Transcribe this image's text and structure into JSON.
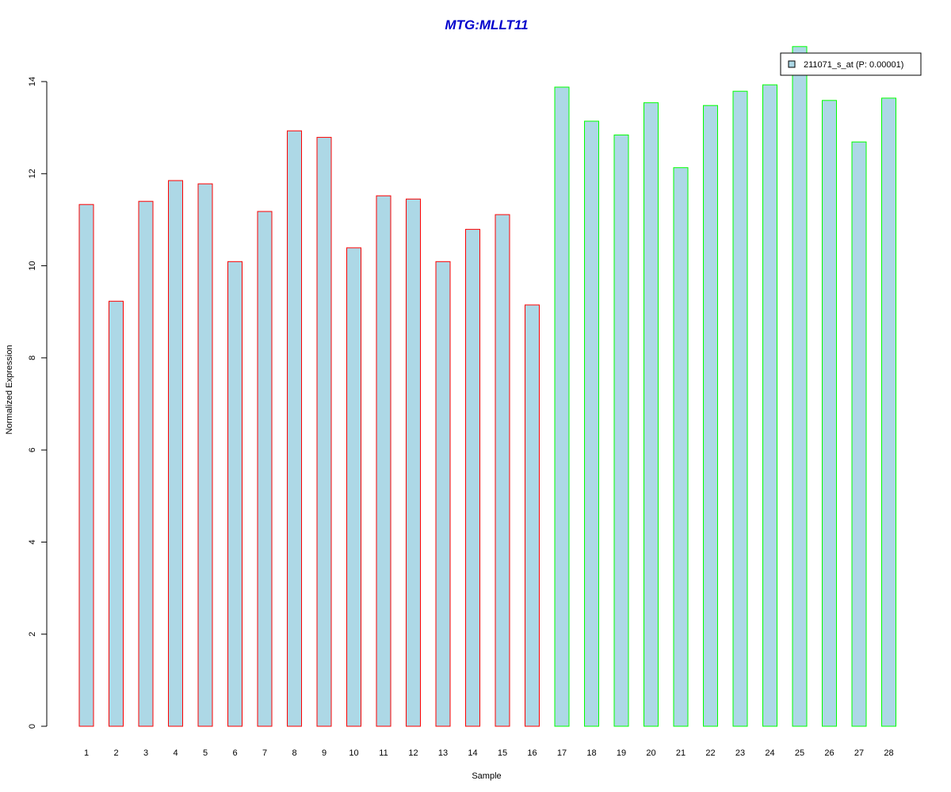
{
  "chart_data": {
    "type": "bar",
    "title": "MTG:MLLT11",
    "title_color": "#0000cc",
    "xlabel": "Sample",
    "ylabel": "Normalized Expression",
    "ylim": [
      0,
      14
    ],
    "yticks": [
      0,
      2,
      4,
      6,
      8,
      10,
      12,
      14
    ],
    "grid": false,
    "legend_position": "top-right",
    "fill_color": "#add8e6",
    "categories": [
      "1",
      "2",
      "3",
      "4",
      "5",
      "6",
      "7",
      "8",
      "9",
      "10",
      "11",
      "12",
      "13",
      "14",
      "15",
      "16",
      "17",
      "18",
      "19",
      "20",
      "21",
      "22",
      "23",
      "24",
      "25",
      "26",
      "27",
      "28"
    ],
    "series": [
      {
        "name": "211071_s_at (P: 0.00001)",
        "values": [
          11.33,
          9.23,
          11.4,
          11.85,
          11.78,
          10.09,
          11.18,
          12.93,
          12.79,
          10.39,
          11.52,
          11.45,
          10.09,
          10.79,
          11.11,
          9.15,
          13.88,
          13.14,
          12.84,
          13.54,
          12.13,
          13.48,
          13.79,
          13.93,
          14.76,
          13.59,
          12.69,
          13.64
        ],
        "border_colors": [
          "#ff0000",
          "#ff0000",
          "#ff0000",
          "#ff0000",
          "#ff0000",
          "#ff0000",
          "#ff0000",
          "#ff0000",
          "#ff0000",
          "#ff0000",
          "#ff0000",
          "#ff0000",
          "#ff0000",
          "#ff0000",
          "#ff0000",
          "#ff0000",
          "#00ff00",
          "#00ff00",
          "#00ff00",
          "#00ff00",
          "#00ff00",
          "#00ff00",
          "#00ff00",
          "#00ff00",
          "#00ff00",
          "#00ff00",
          "#00ff00",
          "#00ff00"
        ]
      }
    ]
  }
}
